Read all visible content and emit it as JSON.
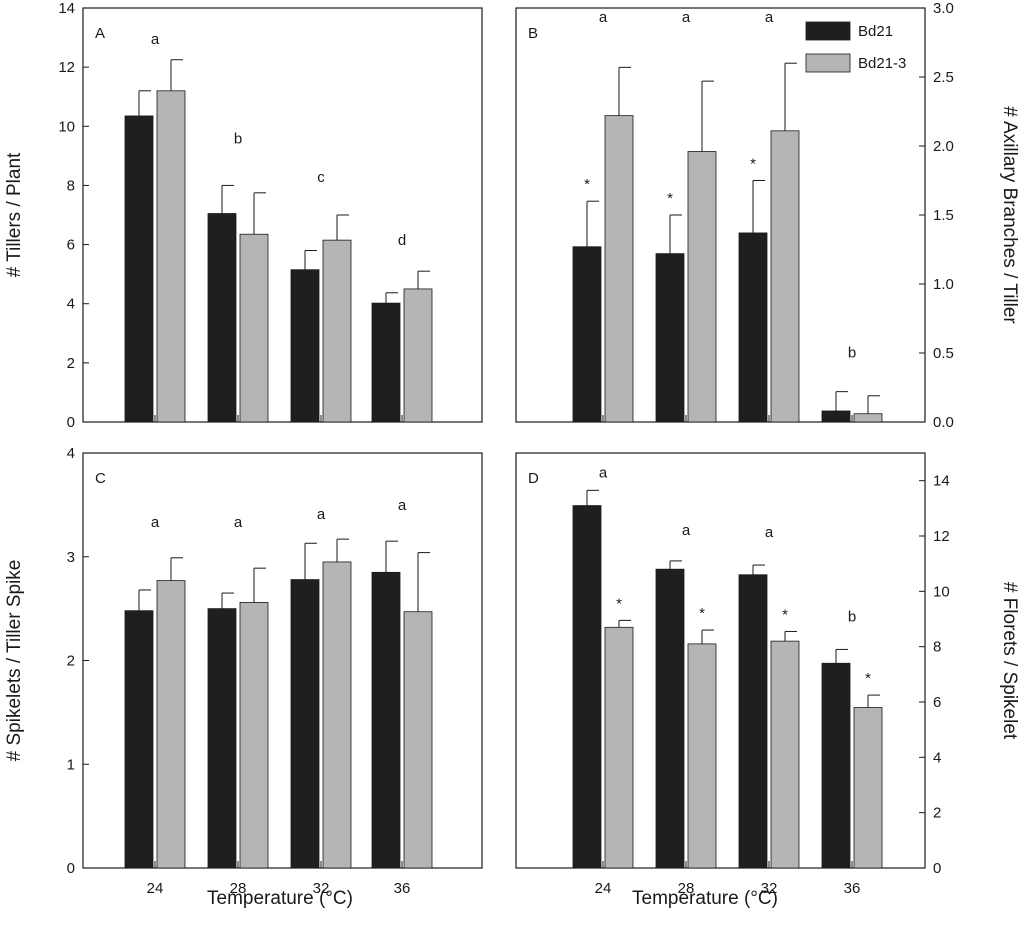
{
  "figure": {
    "x_axis_title": "Temperature (°C)",
    "series_names": [
      "Bd21",
      "Bd21-3"
    ],
    "series_colors": [
      "#1f1f1f",
      "#b5b5b5"
    ]
  },
  "chart_data": [
    {
      "type": "bar",
      "panel_label": "A",
      "categories": [
        "24",
        "28",
        "32",
        "36"
      ],
      "ylabel": "# Tillers / Plant",
      "ylim": [
        0,
        14
      ],
      "yticks": [
        "0",
        "2",
        "4",
        "6",
        "8",
        "10",
        "12",
        "14"
      ],
      "ytick_values": [
        0,
        2,
        4,
        6,
        8,
        10,
        12,
        14
      ],
      "series": [
        {
          "name": "Bd21",
          "values": [
            10.35,
            7.05,
            5.15,
            4.02
          ],
          "errors": [
            0.85,
            0.95,
            0.65,
            0.35
          ]
        },
        {
          "name": "Bd21-3",
          "values": [
            11.2,
            6.35,
            6.15,
            4.5
          ],
          "errors": [
            1.05,
            1.4,
            0.85,
            0.6
          ]
        }
      ],
      "group_annotations": [
        "a",
        "b",
        "c",
        "d"
      ],
      "significance": [
        [
          false,
          false
        ],
        [
          false,
          false
        ],
        [
          false,
          false
        ],
        [
          false,
          false
        ]
      ]
    },
    {
      "type": "bar",
      "panel_label": "B",
      "categories": [
        "24",
        "28",
        "32",
        "36"
      ],
      "ylabel": "# Axillary Branches / Tiller",
      "ylim": [
        0,
        3.0
      ],
      "yticks": [
        "0.0",
        "0.5",
        "1.0",
        "1.5",
        "2.0",
        "2.5",
        "3.0"
      ],
      "ytick_values": [
        0,
        0.5,
        1.0,
        1.5,
        2.0,
        2.5,
        3.0
      ],
      "legend": {
        "position": "top-right",
        "entries": [
          "Bd21",
          "Bd21-3"
        ]
      },
      "series": [
        {
          "name": "Bd21",
          "values": [
            1.27,
            1.22,
            1.37,
            0.08
          ],
          "errors": [
            0.33,
            0.28,
            0.38,
            0.14
          ]
        },
        {
          "name": "Bd21-3",
          "values": [
            2.22,
            1.96,
            2.11,
            0.06
          ],
          "errors": [
            0.35,
            0.51,
            0.49,
            0.13
          ]
        }
      ],
      "group_annotations": [
        "a",
        "a",
        "a",
        "b"
      ],
      "significance": [
        [
          true,
          false
        ],
        [
          true,
          false
        ],
        [
          true,
          false
        ],
        [
          false,
          false
        ]
      ]
    },
    {
      "type": "bar",
      "panel_label": "C",
      "categories": [
        "24",
        "28",
        "32",
        "36"
      ],
      "ylabel": "# Spikelets / Tiller Spike",
      "ylim": [
        0,
        4
      ],
      "yticks": [
        "0",
        "1",
        "2",
        "3",
        "4"
      ],
      "ytick_values": [
        0,
        1,
        2,
        3,
        4
      ],
      "series": [
        {
          "name": "Bd21",
          "values": [
            2.48,
            2.5,
            2.78,
            2.85
          ],
          "errors": [
            0.2,
            0.15,
            0.35,
            0.3
          ]
        },
        {
          "name": "Bd21-3",
          "values": [
            2.77,
            2.56,
            2.95,
            2.47
          ],
          "errors": [
            0.22,
            0.33,
            0.22,
            0.57
          ]
        }
      ],
      "group_annotations": [
        "a",
        "a",
        "a",
        "a"
      ],
      "significance": [
        [
          false,
          false
        ],
        [
          false,
          false
        ],
        [
          false,
          false
        ],
        [
          false,
          false
        ]
      ]
    },
    {
      "type": "bar",
      "panel_label": "D",
      "categories": [
        "24",
        "28",
        "32",
        "36"
      ],
      "ylabel": "# Florets / Spikelet",
      "ylim": [
        0,
        15
      ],
      "yticks": [
        "0",
        "2",
        "4",
        "6",
        "8",
        "10",
        "12",
        "14"
      ],
      "ytick_values": [
        0,
        2,
        4,
        6,
        8,
        10,
        12,
        14
      ],
      "series": [
        {
          "name": "Bd21",
          "values": [
            13.1,
            10.8,
            10.6,
            7.4
          ],
          "errors": [
            0.55,
            0.3,
            0.35,
            0.5
          ]
        },
        {
          "name": "Bd21-3",
          "values": [
            8.7,
            8.1,
            8.2,
            5.8
          ],
          "errors": [
            0.25,
            0.5,
            0.35,
            0.45
          ]
        }
      ],
      "group_annotations": [
        "a",
        "a",
        "a",
        "b"
      ],
      "significance": [
        [
          false,
          true
        ],
        [
          false,
          true
        ],
        [
          false,
          true
        ],
        [
          false,
          true
        ]
      ]
    }
  ]
}
